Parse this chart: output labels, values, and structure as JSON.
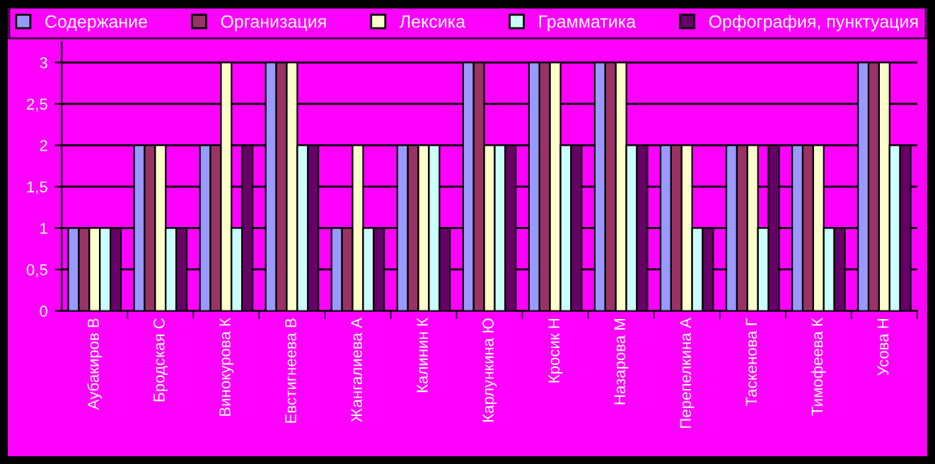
{
  "chart_data": {
    "type": "bar",
    "categories": [
      "Аубакиров В",
      "Бродская С",
      "Винокурова К",
      "Евстигнеева В",
      "Жангалиева А",
      "Калинин К",
      "Карлункина Ю",
      "Кросик Н",
      "Назарова М",
      "Перепелкина А",
      "Таскенова Г",
      "Тимофеева К",
      "Усова Н"
    ],
    "series": [
      {
        "name": "Содержание",
        "color": "#9999ff",
        "values": [
          1,
          2,
          2,
          3,
          1,
          2,
          3,
          3,
          3,
          2,
          2,
          2,
          3
        ]
      },
      {
        "name": "Организация",
        "color": "#993366",
        "values": [
          1,
          2,
          2,
          3,
          1,
          2,
          3,
          3,
          3,
          2,
          2,
          2,
          3
        ]
      },
      {
        "name": "Лексика",
        "color": "#ffffcc",
        "values": [
          1,
          2,
          3,
          3,
          2,
          2,
          2,
          3,
          3,
          2,
          2,
          2,
          3
        ]
      },
      {
        "name": "Грамматика",
        "color": "#ccffff",
        "values": [
          1,
          1,
          1,
          2,
          1,
          2,
          2,
          2,
          2,
          1,
          1,
          1,
          2
        ]
      },
      {
        "name": "Орфография, пунктуация",
        "color": "#660066",
        "values": [
          1,
          1,
          2,
          2,
          1,
          1,
          2,
          2,
          2,
          1,
          2,
          1,
          2
        ]
      }
    ],
    "ylim": [
      0,
      3.25
    ],
    "yticks": [
      0,
      {
        "value": 0.5,
        "label": "0,5"
      },
      1,
      {
        "value": 1.5,
        "label": "1,5"
      },
      2,
      {
        "value": 2.5,
        "label": "2,5"
      },
      3
    ],
    "grid": "y",
    "legend": "top"
  }
}
